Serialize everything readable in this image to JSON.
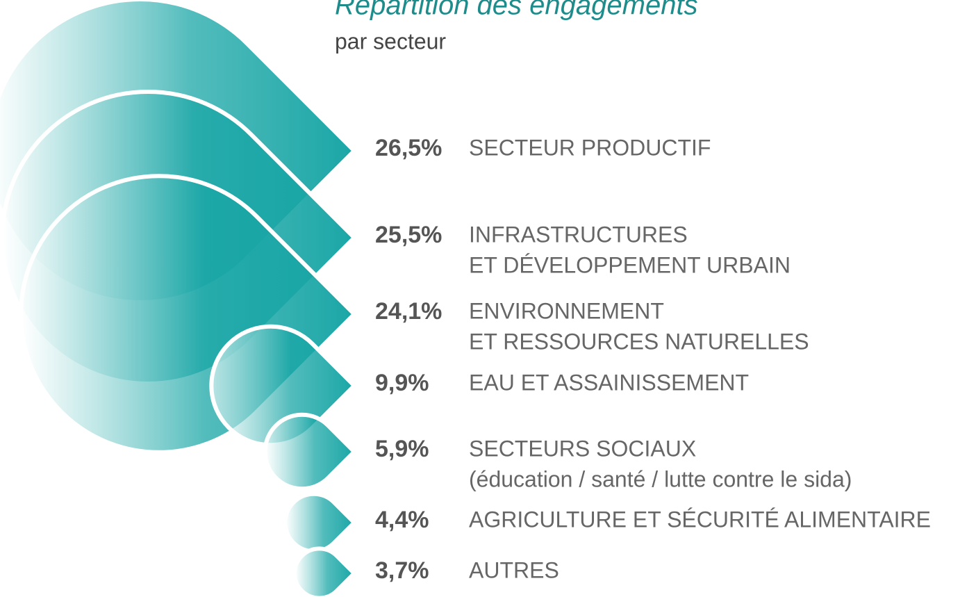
{
  "chart_data": {
    "type": "teardrop",
    "title": "Répartition des engagements",
    "subtitle": "par secteur",
    "categories": [
      [
        "SECTEUR PRODUCTIF"
      ],
      [
        "INFRASTRUCTURES",
        "ET DÉVELOPPEMENT URBAIN"
      ],
      [
        "ENVIRONNEMENT",
        "ET RESSOURCES NATURELLES"
      ],
      [
        "EAU ET ASSAINISSEMENT"
      ],
      [
        "SECTEURS SOCIAUX",
        "(éducation / santé / lutte contre le sida)"
      ],
      [
        "AGRICULTURE ET SÉCURITÉ ALIMENTAIRE"
      ],
      [
        "AUTRES"
      ]
    ],
    "values": [
      26.5,
      25.5,
      24.1,
      9.9,
      5.9,
      4.4,
      3.7
    ],
    "value_labels": [
      "26,5%",
      "25,5%",
      "24,1%",
      "9,9%",
      "5,9%",
      "4,4%",
      "3,7%"
    ],
    "color": "#1aa6a6"
  }
}
